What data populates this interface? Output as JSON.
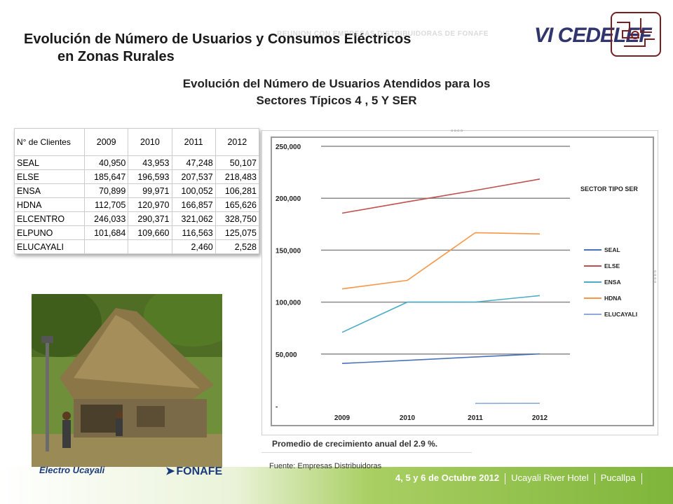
{
  "header": {
    "title_line1": "Evolución de Número de Usuarios y Consumos Eléctricos",
    "title_line2": "en Zonas Rurales",
    "faded_text": "REUNION CON EMPRESAS DISTRIBUIDORAS DE FONAFE",
    "brand": "VI CEDELEF",
    "subtitle_line1": "Evolución del Número de Usuarios Atendidos para los",
    "subtitle_line2": "Sectores Típicos 4 , 5 Y SER"
  },
  "table": {
    "header": [
      "N° de Clientes",
      "2009",
      "2010",
      "2011",
      "2012"
    ],
    "rows": [
      [
        "SEAL",
        "40,950",
        "43,953",
        "47,248",
        "50,107"
      ],
      [
        "ELSE",
        "185,647",
        "196,593",
        "207,537",
        "218,483"
      ],
      [
        "ENSA",
        "70,899",
        "99,971",
        "100,052",
        "106,281"
      ],
      [
        "HDNA",
        "112,705",
        "120,970",
        "166,857",
        "165,626"
      ],
      [
        "ELCENTRO",
        "246,033",
        "290,371",
        "321,062",
        "328,750"
      ],
      [
        "ELPUNO",
        "101,684",
        "109,660",
        "116,563",
        "125,075"
      ],
      [
        "ELUCAYALI",
        "",
        "",
        "2,460",
        "2,528"
      ]
    ]
  },
  "chart_data": {
    "type": "line",
    "title": "SECTOR TIPO SER",
    "x": [
      "2009",
      "2010",
      "2011",
      "2012"
    ],
    "ylim": [
      0,
      250000
    ],
    "y_ticks": [
      "250,000",
      "200,000",
      "150,000",
      "100,000",
      "50,000",
      "-"
    ],
    "grid": true,
    "legend_position": "right",
    "series": [
      {
        "name": "SEAL",
        "color": "#4a72b8",
        "values": [
          40950,
          43953,
          47248,
          50107
        ]
      },
      {
        "name": "ELSE",
        "color": "#c0504d",
        "values": [
          185647,
          196593,
          207537,
          218483
        ]
      },
      {
        "name": "ENSA",
        "color": "#4bacc6",
        "values": [
          70899,
          99971,
          100052,
          106281
        ]
      },
      {
        "name": "HDNA",
        "color": "#f79646",
        "values": [
          112705,
          120970,
          166857,
          165626
        ]
      },
      {
        "name": "ELUCAYALI",
        "color": "#8ea9db",
        "values": [
          null,
          null,
          2460,
          2528
        ]
      }
    ]
  },
  "caption": "Promedio de crecimiento anual del 2.9 %.",
  "source": "Fuente: Empresas Distribuidoras",
  "footer": {
    "date": "4, 5 y 6 de Octubre 2012",
    "venue": "Ucayali River Hotel",
    "city": "Pucallpa"
  },
  "logos": {
    "left": "Electro Ucayali",
    "right": "FONAFE"
  },
  "colors": {
    "footer_green": "#8cbf3f",
    "brand_blue": "#31356e"
  }
}
